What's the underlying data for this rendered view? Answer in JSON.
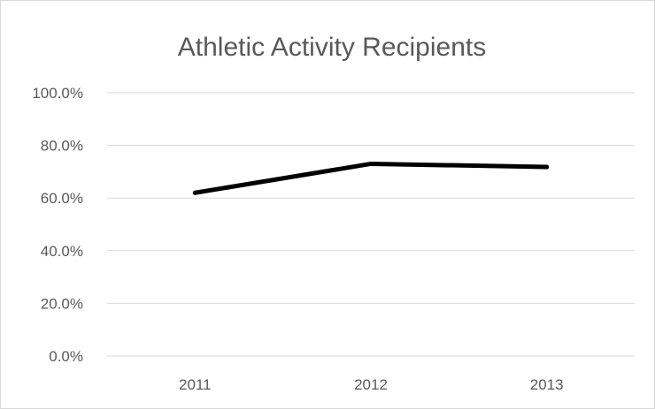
{
  "chart_data": {
    "type": "line",
    "title": "Athletic Activity Recipients",
    "categories": [
      "2011",
      "2012",
      "2013"
    ],
    "series": [
      {
        "values": [
          0.62,
          0.73,
          0.718
        ]
      }
    ],
    "ylim": [
      0,
      1
    ],
    "yticks": [
      0,
      0.2,
      0.4,
      0.6,
      0.8,
      1.0
    ],
    "ytick_labels": [
      "0.0%",
      "20.0%",
      "40.0%",
      "60.0%",
      "80.0%",
      "100.0%"
    ],
    "xlabel": "",
    "ylabel": "",
    "grid": true,
    "legend": "none",
    "colors": {
      "line": "#000000",
      "grid": "#d9d9d9",
      "border": "#d9d9d9",
      "text": "#595959"
    }
  }
}
